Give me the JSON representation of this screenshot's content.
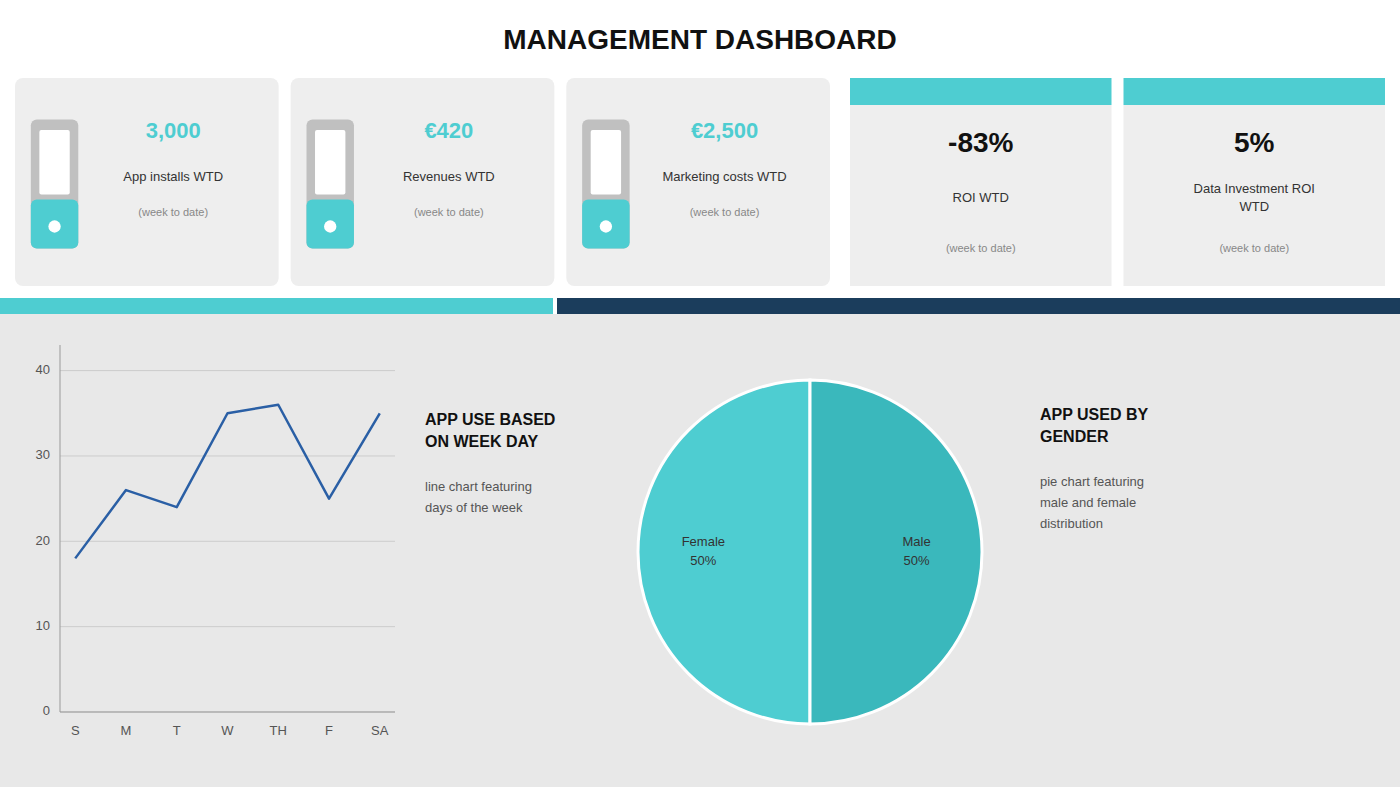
{
  "title": "MANAGEMENT DASHBOARD",
  "chart_data": [
    {
      "type": "kpi_icon",
      "cards": [
        {
          "value_label": "3,000",
          "label": "App installs WTD",
          "sublabel": "(week to date)"
        },
        {
          "value_label": "€420",
          "label": "Revenues WTD",
          "sublabel": "(week to date)"
        },
        {
          "value_label": "€2,500",
          "label": "Marketing costs WTD",
          "sublabel": "(week to date)"
        }
      ]
    },
    {
      "type": "kpi",
      "cards": [
        {
          "value_label": "-83%",
          "label": "ROI WTD",
          "sublabel": "(week to date)"
        },
        {
          "value_label": "5%",
          "label": "Data Investment ROI\nWTD",
          "sublabel": "(week to date)"
        }
      ]
    },
    {
      "type": "line",
      "title": "APP USE BASED\nON WEEK DAY",
      "subtitle": "line chart featuring\ndays of the week",
      "categories": [
        "S",
        "M",
        "T",
        "W",
        "TH",
        "F",
        "SA"
      ],
      "values": [
        18,
        26,
        24,
        35,
        36,
        25,
        35
      ],
      "color": "#2a5fa5",
      "ylim": [
        0,
        43
      ],
      "yticks": [
        0,
        10,
        20,
        30,
        40
      ],
      "grid": true
    },
    {
      "type": "pie",
      "title": "APP USED BY\nGENDER",
      "subtitle": "pie chart featuring\nmale and female\ndistribution",
      "categories": [
        "Female",
        "Male"
      ],
      "values": [
        50,
        50
      ],
      "value_labels": [
        "50%",
        "50%"
      ],
      "colors": [
        "#4ecdd1",
        "#3ab8bc"
      ]
    }
  ]
}
